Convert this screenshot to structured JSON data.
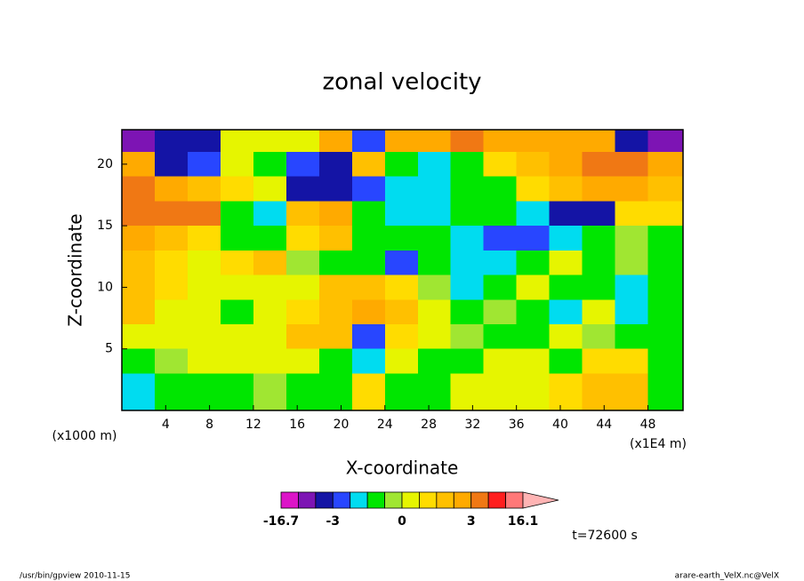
{
  "chart_data": {
    "type": "contour",
    "title": "zonal velocity",
    "xlabel": "X-coordinate",
    "ylabel": "Z-coordinate",
    "y_unit_label": "(x1000 m)",
    "x_unit_label": "(x1E4 m)",
    "time_label": "t=72600 s",
    "footer_left": "/usr/bin/gpview   2010-11-15",
    "footer_right": "arare-earth_VelX.nc@VelX",
    "xlim": [
      0,
      51.2
    ],
    "ylim": [
      0,
      22.8
    ],
    "xticks": [
      4,
      8,
      12,
      16,
      20,
      24,
      28,
      32,
      36,
      40,
      44,
      48
    ],
    "yticks": [
      5,
      10,
      15,
      20
    ],
    "x": [
      1.5,
      4.5,
      7.5,
      10.5,
      13.5,
      16.5,
      19.5,
      22.5,
      25.5,
      28.5,
      31.5,
      34.5,
      37.5,
      40.5,
      43.5,
      46.5,
      49.5
    ],
    "y": [
      22,
      20,
      18,
      16,
      14,
      12,
      10,
      8,
      6,
      4,
      2
    ],
    "z": [
      [
        -7,
        -4,
        -4,
        0.3,
        0.3,
        0.3,
        2.5,
        -2.5,
        2.5,
        2.5,
        4,
        2.5,
        2.5,
        2.5,
        2.5,
        -4,
        -7
      ],
      [
        2.5,
        -4,
        -2.5,
        0.3,
        -0.7,
        -2.5,
        -4,
        1.5,
        -0.7,
        -1.5,
        -0.7,
        0.7,
        1.5,
        2.5,
        4,
        4,
        2.5
      ],
      [
        4,
        2.5,
        1.5,
        0.7,
        0.3,
        -4,
        -4,
        -2.5,
        -1.5,
        -1.5,
        -0.7,
        -0.7,
        0.7,
        1.5,
        2.5,
        2.5,
        1.5
      ],
      [
        4,
        4,
        4,
        -0.7,
        -1.5,
        1.5,
        2.5,
        -0.7,
        -1.5,
        -1.5,
        -0.7,
        -0.7,
        -1.5,
        -4,
        -4,
        0.7,
        0.7
      ],
      [
        2.5,
        1.5,
        0.7,
        -0.7,
        -0.7,
        0.7,
        1.5,
        -0.7,
        -0.7,
        -0.7,
        -1.5,
        -2.5,
        -2.5,
        -1.5,
        -0.7,
        -0.2,
        -0.7
      ],
      [
        1.5,
        0.7,
        0.3,
        0.7,
        1.5,
        -0.2,
        -0.7,
        -0.7,
        -2.5,
        -0.7,
        -1.5,
        -1.5,
        -0.7,
        0.3,
        -0.7,
        -0.2,
        -0.7
      ],
      [
        1.5,
        0.7,
        0.3,
        0.3,
        0.3,
        0.3,
        1.5,
        1.5,
        0.7,
        -0.2,
        -1.5,
        -0.7,
        0.3,
        -0.7,
        -0.7,
        -1.5,
        -0.7
      ],
      [
        1.5,
        0.3,
        0.3,
        -0.7,
        0.3,
        0.7,
        1.5,
        2.5,
        1.5,
        0.3,
        -0.7,
        -0.2,
        -0.7,
        -1.5,
        0.3,
        -1.5,
        -0.7
      ],
      [
        0.3,
        0.3,
        0.3,
        0.3,
        0.3,
        1.5,
        1.5,
        -2.5,
        0.7,
        0.3,
        -0.2,
        -0.7,
        -0.7,
        0.3,
        -0.2,
        -0.7,
        -0.7
      ],
      [
        -0.7,
        -0.2,
        0.3,
        0.3,
        0.3,
        0.3,
        -0.7,
        -1.5,
        0.3,
        -0.7,
        -0.7,
        0.3,
        0.3,
        -0.7,
        0.7,
        0.7,
        -0.7
      ],
      [
        -1.5,
        -0.7,
        -0.7,
        -0.7,
        -0.2,
        -0.7,
        -0.7,
        0.7,
        -0.7,
        -0.7,
        0.3,
        0.3,
        0.3,
        0.7,
        1.5,
        1.5,
        -0.7
      ]
    ],
    "levels": [
      -16.7,
      -9,
      -6,
      -3,
      -2,
      -1,
      -0.5,
      0,
      0.5,
      1,
      2,
      3,
      6,
      9,
      16.1
    ],
    "colors": [
      "#dc14c8",
      "#7d14b4",
      "#1414a5",
      "#2846ff",
      "#00dcf0",
      "#00e600",
      "#a0e632",
      "#e6f500",
      "#ffdc00",
      "#ffc000",
      "#ffaa00",
      "#f07814",
      "#ff1e1e",
      "#ff7878"
    ],
    "extend_color": "#ffb4b4",
    "colorbar_labels": [
      -16.7,
      -3,
      0,
      3,
      16.1
    ]
  }
}
